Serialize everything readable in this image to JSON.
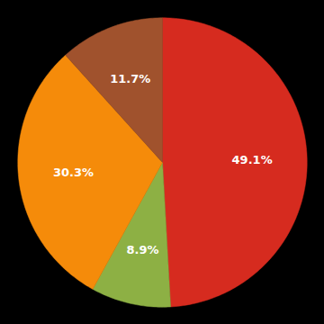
{
  "chart_data": {
    "type": "pie",
    "values": [
      49.1,
      8.9,
      30.3,
      11.7
    ],
    "value_labels": [
      "49.1%",
      "8.9%",
      "30.3%",
      "11.7%"
    ],
    "colors": [
      "#d62b1f",
      "#8db044",
      "#f58b0a",
      "#a0522d"
    ],
    "data_labels": true
  }
}
